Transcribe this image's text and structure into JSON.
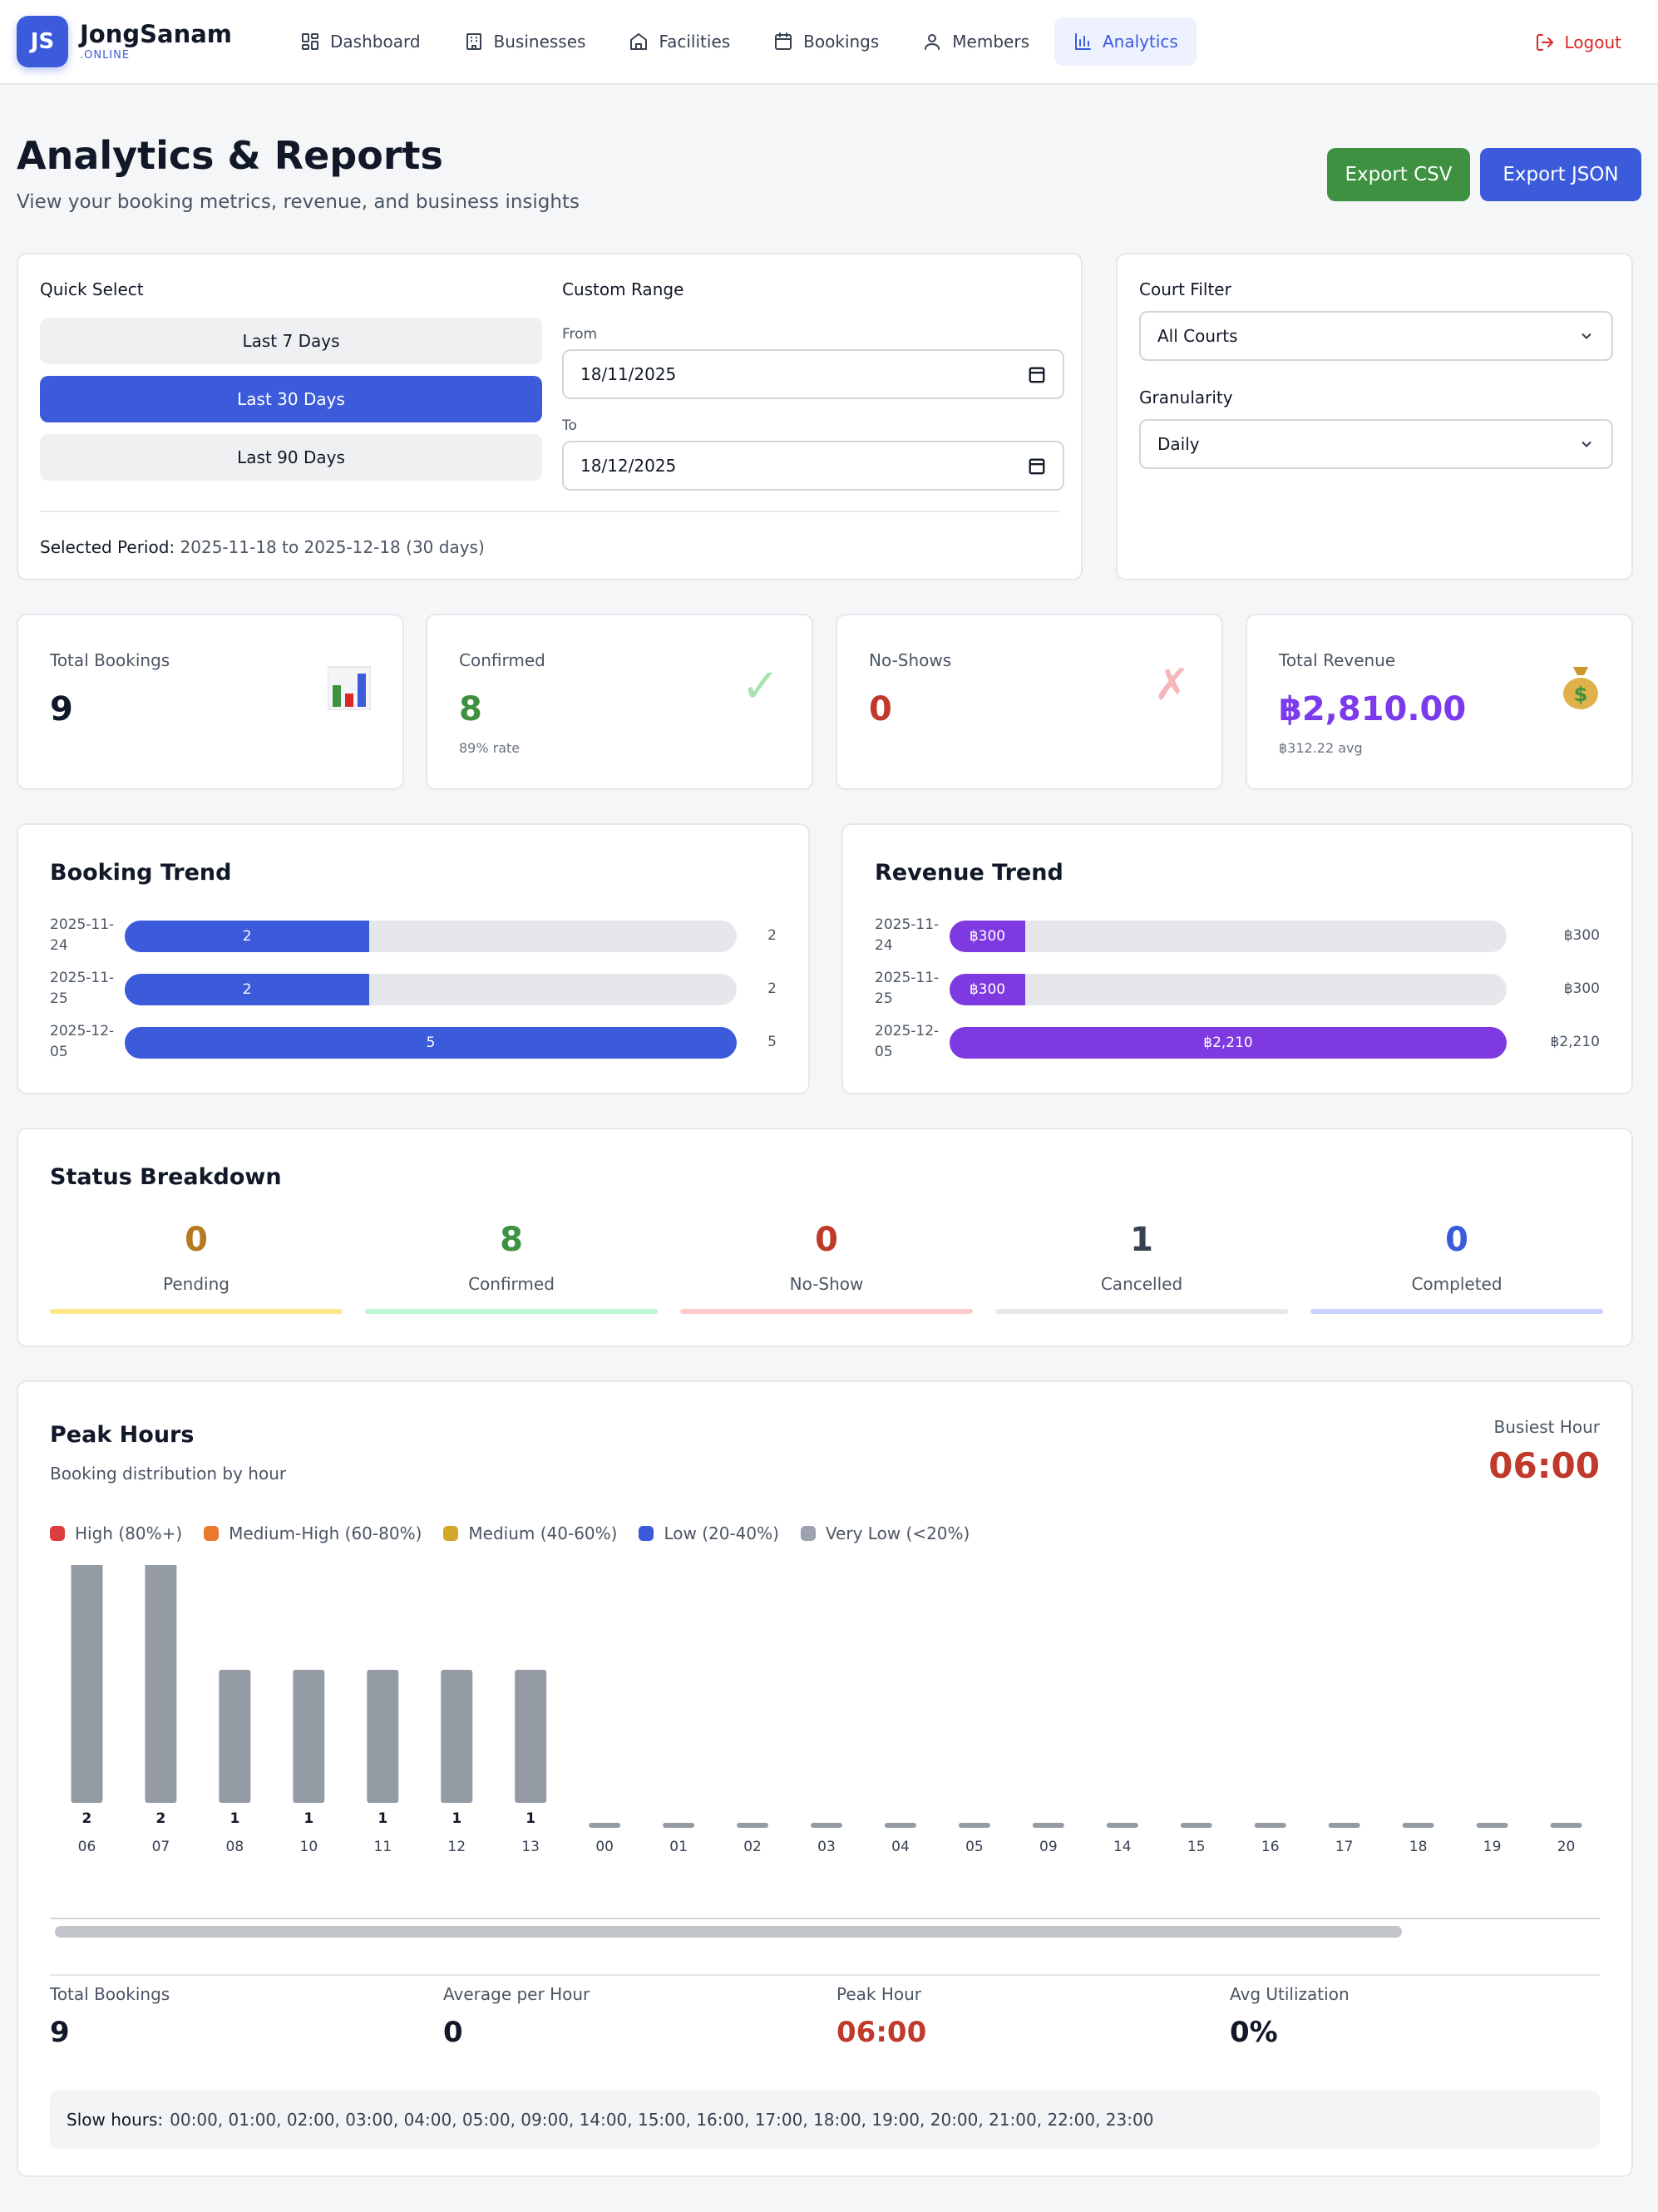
{
  "brand": {
    "initials": "JS",
    "name": "JongSanam",
    "sub": ".ONLINE"
  },
  "nav": {
    "items": [
      {
        "label": "Dashboard",
        "icon": "dashboard-icon",
        "active": false
      },
      {
        "label": "Businesses",
        "icon": "building-icon",
        "active": false
      },
      {
        "label": "Facilities",
        "icon": "home-icon",
        "active": false
      },
      {
        "label": "Bookings",
        "icon": "calendar-icon",
        "active": false
      },
      {
        "label": "Members",
        "icon": "user-icon",
        "active": false
      },
      {
        "label": "Analytics",
        "icon": "bar-chart-icon",
        "active": true
      }
    ],
    "logout": "Logout"
  },
  "header": {
    "title": "Analytics & Reports",
    "subtitle": "View your booking metrics, revenue, and business insights",
    "export_csv": "Export CSV",
    "export_json": "Export JSON"
  },
  "filters": {
    "quick_select_label": "Quick Select",
    "quick_options": [
      "Last 7 Days",
      "Last 30 Days",
      "Last 90 Days"
    ],
    "quick_selected": "Last 30 Days",
    "custom_range_label": "Custom Range",
    "from_label": "From",
    "from_value": "18/11/2025",
    "to_label": "To",
    "to_value": "18/12/2025",
    "selected_period_label": "Selected Period:",
    "selected_period_value": "2025-11-18 to 2025-12-18 (30 days)",
    "court_filter_label": "Court Filter",
    "court_filter_value": "All Courts",
    "granularity_label": "Granularity",
    "granularity_value": "Daily"
  },
  "stats": [
    {
      "label": "Total Bookings",
      "value": "9",
      "sub": "",
      "icon": "📊",
      "color": "#111827"
    },
    {
      "label": "Confirmed",
      "value": "8",
      "sub": "89% rate",
      "icon": "✓",
      "color": "#3d9140"
    },
    {
      "label": "No-Shows",
      "value": "0",
      "sub": "",
      "icon": "✗",
      "color": "#c0392b"
    },
    {
      "label": "Total Revenue",
      "value": "฿2,810.00",
      "sub": "฿312.22 avg",
      "icon": "💰",
      "color": "#7c3aed"
    }
  ],
  "booking_trend": {
    "title": "Booking Trend",
    "max": 5,
    "rows": [
      {
        "date": "2025-11-24",
        "value": 2,
        "label": "2"
      },
      {
        "date": "2025-11-25",
        "value": 2,
        "label": "2"
      },
      {
        "date": "2025-12-05",
        "value": 5,
        "label": "5"
      }
    ]
  },
  "revenue_trend": {
    "title": "Revenue Trend",
    "max": 2210,
    "rows": [
      {
        "date": "2025-11-24",
        "value": 300,
        "label": "฿300"
      },
      {
        "date": "2025-11-25",
        "value": 300,
        "label": "฿300"
      },
      {
        "date": "2025-12-05",
        "value": 2210,
        "label": "฿2,210"
      }
    ]
  },
  "status_breakdown": {
    "title": "Status Breakdown",
    "items": [
      {
        "label": "Pending",
        "value": "0",
        "color": "#b7791f",
        "line": "#fde68a"
      },
      {
        "label": "Confirmed",
        "value": "8",
        "color": "#3d9140",
        "line": "#bbf7d0"
      },
      {
        "label": "No-Show",
        "value": "0",
        "color": "#c0392b",
        "line": "#fecaca"
      },
      {
        "label": "Cancelled",
        "value": "1",
        "color": "#374151",
        "line": "#e5e7eb"
      },
      {
        "label": "Completed",
        "value": "0",
        "color": "#3b5bdb",
        "line": "#c7d2fe"
      }
    ]
  },
  "peak_hours": {
    "title": "Peak Hours",
    "subtitle": "Booking distribution by hour",
    "busiest_label": "Busiest Hour",
    "busiest_value": "06:00",
    "legend": [
      {
        "label": "High (80%+)",
        "color": "#dc3e3e"
      },
      {
        "label": "Medium-High (60-80%)",
        "color": "#ea7a2e"
      },
      {
        "label": "Medium (40-60%)",
        "color": "#d4a62a"
      },
      {
        "label": "Low (20-40%)",
        "color": "#3b5bdb"
      },
      {
        "label": "Very Low (<20%)",
        "color": "#9ca3af"
      }
    ],
    "summary": [
      {
        "label": "Total Bookings",
        "value": "9",
        "color": "#111827"
      },
      {
        "label": "Average per Hour",
        "value": "0",
        "color": "#111827"
      },
      {
        "label": "Peak Hour",
        "value": "06:00",
        "color": "#c0392b"
      },
      {
        "label": "Avg Utilization",
        "value": "0%",
        "color": "#111827"
      }
    ],
    "slow_hours_label": "Slow hours:",
    "slow_hours_value": "00:00, 01:00, 02:00, 03:00, 04:00, 05:00, 09:00, 14:00, 15:00, 16:00, 17:00, 18:00, 19:00, 20:00, 21:00, 22:00, 23:00"
  },
  "chart_data": {
    "type": "bar",
    "title": "Peak Hours",
    "categories": [
      "06",
      "07",
      "08",
      "10",
      "11",
      "12",
      "13",
      "00",
      "01",
      "02",
      "03",
      "04",
      "05",
      "09",
      "14",
      "15",
      "16",
      "17",
      "18",
      "19",
      "20"
    ],
    "values": [
      2,
      2,
      1,
      1,
      1,
      1,
      1,
      0,
      0,
      0,
      0,
      0,
      0,
      0,
      0,
      0,
      0,
      0,
      0,
      0,
      0
    ],
    "value_labels": [
      "2",
      "2",
      "1",
      "1",
      "1",
      "1",
      "1",
      "",
      "",
      "",
      "",
      "",
      "",
      "",
      "",
      "",
      "",
      "",
      "",
      "",
      ""
    ],
    "ylim": [
      0,
      2
    ],
    "bar_color": "#959ba5",
    "xlabel": "",
    "ylabel": ""
  }
}
